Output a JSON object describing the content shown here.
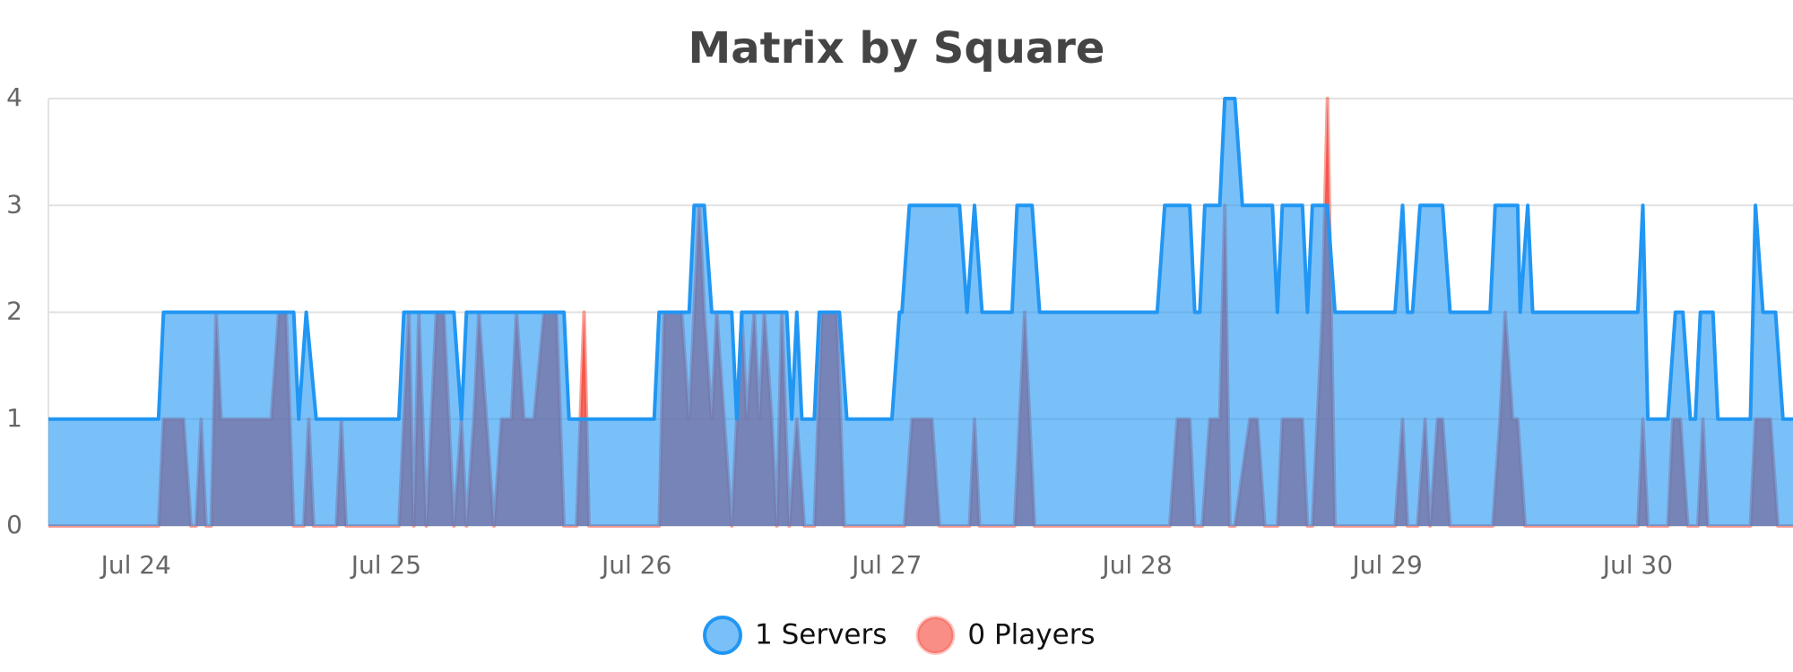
{
  "chart_data": {
    "type": "area",
    "title": "Matrix by Square",
    "xlim": [
      23.65,
      30.62
    ],
    "xticks": [
      {
        "value": 24,
        "label": "Jul 24"
      },
      {
        "value": 25,
        "label": "Jul 25"
      },
      {
        "value": 26,
        "label": "Jul 26"
      },
      {
        "value": 27,
        "label": "Jul 27"
      },
      {
        "value": 28,
        "label": "Jul 28"
      },
      {
        "value": 29,
        "label": "Jul 29"
      },
      {
        "value": 30,
        "label": "Jul 30"
      }
    ],
    "ylim": [
      0,
      4
    ],
    "yticks": [
      0,
      1,
      2,
      3,
      4
    ],
    "grid": true,
    "series": [
      {
        "name": "1 Servers",
        "color": "#2196f3",
        "x": [
          23.65,
          24.09,
          24.11,
          24.63,
          24.65,
          24.68,
          24.72,
          25.05,
          25.07,
          25.27,
          25.3,
          25.32,
          25.71,
          25.73,
          26.07,
          26.09,
          26.21,
          26.23,
          26.27,
          26.3,
          26.38,
          26.4,
          26.42,
          26.6,
          26.62,
          26.64,
          26.66,
          26.71,
          26.73,
          26.81,
          26.84,
          27.02,
          27.05,
          27.06,
          27.09,
          27.29,
          27.32,
          27.35,
          27.38,
          27.5,
          27.52,
          27.58,
          27.61,
          28.08,
          28.11,
          28.21,
          28.23,
          28.25,
          28.27,
          28.33,
          28.35,
          28.39,
          28.42,
          28.54,
          28.56,
          28.58,
          28.66,
          28.68,
          28.7,
          28.76,
          28.79,
          29.03,
          29.06,
          29.08,
          29.1,
          29.13,
          29.22,
          29.25,
          29.41,
          29.43,
          29.52,
          29.53,
          29.56,
          29.58,
          30.0,
          30.02,
          30.04,
          30.12,
          30.15,
          30.18,
          30.21,
          30.23,
          30.25,
          30.3,
          30.32,
          30.45,
          30.47,
          30.5,
          30.55,
          30.58,
          30.62
        ],
        "values": [
          1,
          1,
          2,
          2,
          1,
          2,
          1,
          1,
          2,
          2,
          1,
          2,
          2,
          1,
          1,
          2,
          2,
          3,
          3,
          2,
          2,
          1,
          2,
          2,
          1,
          2,
          1,
          1,
          2,
          2,
          1,
          1,
          2,
          2,
          3,
          3,
          2,
          3,
          2,
          2,
          3,
          3,
          2,
          2,
          3,
          3,
          2,
          2,
          3,
          3,
          4,
          4,
          3,
          3,
          2,
          3,
          3,
          2,
          3,
          3,
          2,
          2,
          3,
          2,
          2,
          3,
          3,
          2,
          2,
          3,
          3,
          2,
          3,
          2,
          2,
          3,
          1,
          1,
          2,
          2,
          1,
          1,
          2,
          2,
          1,
          1,
          3,
          2,
          2,
          1,
          1
        ]
      },
      {
        "name": "0 Players",
        "color": "#f44336",
        "x": [
          23.65,
          24.09,
          24.11,
          24.19,
          24.22,
          24.24,
          24.26,
          24.28,
          24.3,
          24.32,
          24.34,
          24.37,
          24.54,
          24.57,
          24.6,
          24.63,
          24.67,
          24.69,
          24.71,
          24.8,
          24.82,
          24.84,
          25.05,
          25.07,
          25.09,
          25.11,
          25.13,
          25.16,
          25.18,
          25.2,
          25.23,
          25.25,
          25.27,
          25.3,
          25.32,
          25.35,
          25.37,
          25.4,
          25.43,
          25.46,
          25.5,
          25.52,
          25.55,
          25.59,
          25.63,
          25.68,
          25.71,
          25.76,
          25.79,
          25.81,
          26.09,
          26.11,
          26.18,
          26.21,
          26.23,
          26.25,
          26.27,
          26.3,
          26.32,
          26.35,
          26.38,
          26.42,
          26.44,
          26.47,
          26.49,
          26.51,
          26.54,
          26.56,
          26.58,
          26.61,
          26.64,
          26.67,
          26.71,
          26.74,
          26.8,
          26.83,
          27.07,
          27.1,
          27.18,
          27.21,
          27.33,
          27.35,
          27.37,
          27.51,
          27.55,
          27.59,
          28.13,
          28.16,
          28.21,
          28.23,
          28.26,
          28.29,
          28.33,
          28.35,
          28.37,
          28.39,
          28.45,
          28.48,
          28.51,
          28.56,
          28.58,
          28.66,
          28.68,
          28.7,
          28.72,
          28.74,
          28.76,
          28.79,
          29.03,
          29.06,
          29.08,
          29.12,
          29.15,
          29.17,
          29.2,
          29.22,
          29.25,
          29.42,
          29.45,
          29.47,
          29.5,
          29.52,
          29.55,
          30.0,
          30.02,
          30.04,
          30.12,
          30.14,
          30.17,
          30.2,
          30.24,
          30.26,
          30.28,
          30.45,
          30.47,
          30.53,
          30.56,
          30.62
        ],
        "values": [
          0,
          0,
          1,
          1,
          0,
          0,
          1,
          0,
          0,
          2,
          1,
          1,
          1,
          2,
          2,
          0,
          0,
          1,
          0,
          0,
          1,
          0,
          0,
          1,
          2,
          0,
          2,
          0,
          1,
          2,
          2,
          1,
          0,
          1,
          0,
          1,
          2,
          1,
          0,
          1,
          1,
          2,
          1,
          1,
          2,
          2,
          0,
          0,
          2,
          0,
          0,
          2,
          2,
          1,
          2,
          3,
          2,
          1,
          2,
          1,
          0,
          2,
          1,
          2,
          1,
          2,
          1,
          0,
          2,
          0,
          1,
          0,
          0,
          2,
          2,
          0,
          0,
          1,
          1,
          0,
          0,
          1,
          0,
          0,
          2,
          0,
          0,
          1,
          1,
          0,
          0,
          1,
          1,
          3,
          0,
          0,
          1,
          1,
          0,
          0,
          1,
          1,
          0,
          0,
          1,
          2,
          4,
          0,
          0,
          1,
          0,
          0,
          1,
          0,
          1,
          1,
          0,
          0,
          1,
          2,
          1,
          1,
          0,
          0,
          1,
          0,
          0,
          1,
          1,
          0,
          0,
          1,
          0,
          0,
          1,
          1,
          0,
          0
        ]
      }
    ]
  }
}
